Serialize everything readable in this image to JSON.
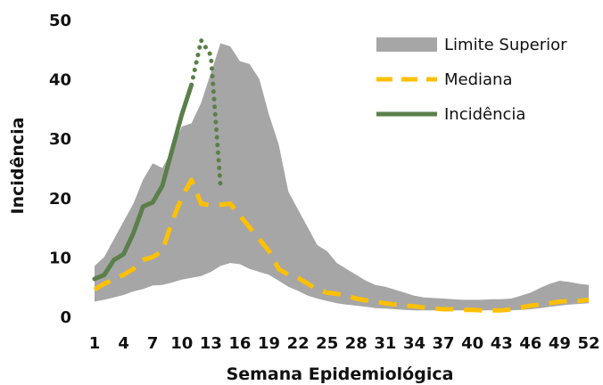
{
  "chart_data": {
    "type": "line",
    "xlabel": "Semana Epidemiológica",
    "ylabel": "Incidência",
    "ylim": [
      0,
      50
    ],
    "yticks": [
      0,
      10,
      20,
      30,
      40,
      50
    ],
    "xticks": [
      1,
      4,
      7,
      10,
      13,
      16,
      19,
      22,
      25,
      28,
      31,
      34,
      37,
      40,
      43,
      46,
      49,
      52
    ],
    "xlim": [
      1,
      52
    ],
    "grid": false,
    "legend_position": "top-right",
    "series": [
      {
        "name": "Limite Superior",
        "kind": "band",
        "color": "#a6a6a6",
        "x": [
          1,
          2,
          3,
          4,
          5,
          6,
          7,
          8,
          9,
          10,
          11,
          12,
          13,
          14,
          15,
          16,
          17,
          18,
          19,
          20,
          21,
          22,
          23,
          24,
          25,
          26,
          27,
          28,
          29,
          30,
          31,
          32,
          33,
          34,
          35,
          36,
          37,
          38,
          39,
          40,
          41,
          42,
          43,
          44,
          45,
          46,
          47,
          48,
          49,
          50,
          51,
          52
        ],
        "upper": [
          8.5,
          10,
          13,
          16,
          19,
          23,
          25.8,
          25,
          28,
          32,
          32.5,
          36,
          41,
          46,
          45.5,
          43,
          42.5,
          40,
          34,
          29,
          21,
          18,
          15,
          12,
          11,
          9,
          8,
          7,
          6,
          5.3,
          5,
          4.5,
          4,
          3.5,
          3.2,
          3.1,
          3,
          2.9,
          2.8,
          2.8,
          2.8,
          2.9,
          2.9,
          3,
          3.5,
          4,
          4.8,
          5.5,
          6,
          5.8,
          5.5,
          5.3
        ],
        "lower": [
          2.5,
          2.8,
          3.2,
          3.6,
          4.2,
          4.6,
          5.2,
          5.3,
          5.7,
          6.2,
          6.5,
          6.8,
          7.5,
          8.5,
          9,
          8.8,
          8,
          7.5,
          7,
          6,
          5,
          4.3,
          3.5,
          3,
          2.6,
          2.2,
          2,
          1.8,
          1.6,
          1.4,
          1.3,
          1.2,
          1.1,
          1,
          1,
          1,
          1,
          1,
          1,
          1,
          1,
          1,
          1,
          1,
          1.1,
          1.2,
          1.4,
          1.6,
          1.8,
          2,
          2.1,
          2.2
        ]
      },
      {
        "name": "Mediana",
        "kind": "dashed-line",
        "color": "#ffc000",
        "x": [
          1,
          2,
          3,
          4,
          5,
          6,
          7,
          8,
          9,
          10,
          11,
          12,
          13,
          14,
          15,
          16,
          17,
          18,
          19,
          20,
          21,
          22,
          23,
          24,
          25,
          26,
          27,
          28,
          29,
          30,
          31,
          32,
          33,
          34,
          35,
          36,
          37,
          38,
          39,
          40,
          41,
          42,
          43,
          44,
          45,
          46,
          47,
          48,
          49,
          50,
          51,
          52
        ],
        "values": [
          4.5,
          5.5,
          6.2,
          7,
          8,
          9.5,
          10,
          11,
          16,
          20,
          23,
          19,
          18.7,
          18.8,
          19,
          17,
          15,
          13,
          11,
          8,
          7,
          6.5,
          5.5,
          4.5,
          4,
          3.8,
          3.5,
          3,
          2.7,
          2.5,
          2.2,
          2,
          1.8,
          1.7,
          1.5,
          1.3,
          1.2,
          1.2,
          1.1,
          1.1,
          1,
          1,
          1,
          1.2,
          1.5,
          1.8,
          2,
          2.2,
          2.5,
          2.6,
          2.6,
          2.8
        ]
      },
      {
        "name": "Incidência",
        "kind": "solid-line",
        "color": "#5b7f4a",
        "x": [
          1,
          2,
          3,
          4,
          5,
          6,
          7,
          8,
          9,
          10,
          11
        ],
        "values": [
          6.3,
          7,
          9.5,
          10.5,
          14,
          18.5,
          19.2,
          22,
          28,
          34,
          39
        ]
      },
      {
        "name": "",
        "kind": "dotted-line",
        "color": "#5b7f4a",
        "x": [
          11,
          12,
          13,
          14
        ],
        "values": [
          39,
          46.5,
          44,
          22
        ]
      }
    ]
  }
}
